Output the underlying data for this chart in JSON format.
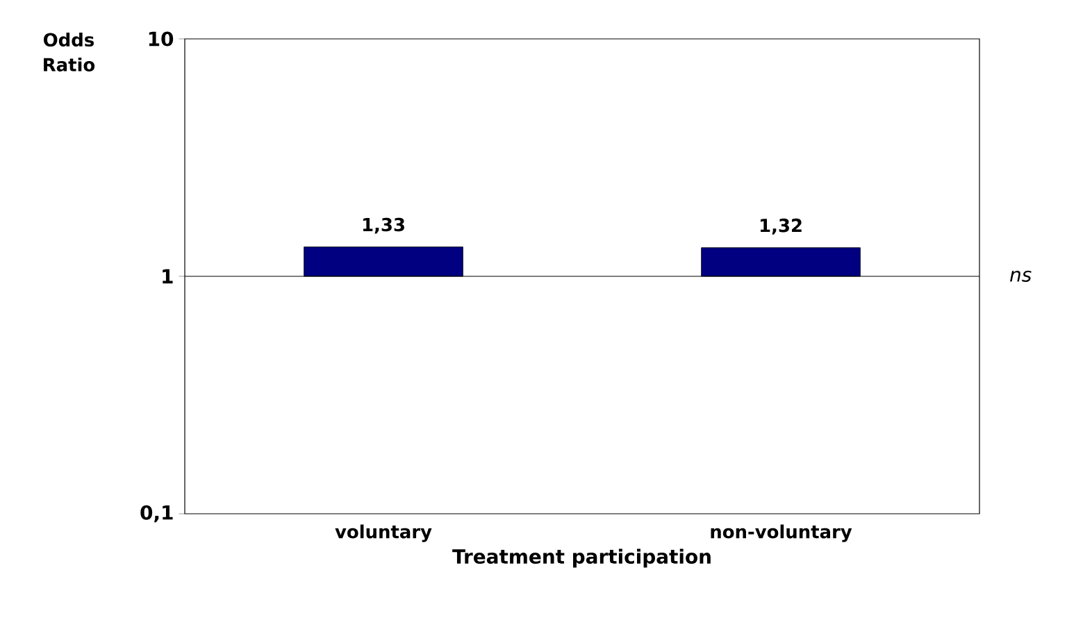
{
  "chart_data": {
    "type": "bar",
    "ylabel": "Odds Ratio",
    "xlabel": "Treatment participation",
    "categories": [
      "voluntary",
      "non-voluntary"
    ],
    "base": [
      1,
      1
    ],
    "values": [
      0.33,
      0.32
    ],
    "value_labels": [
      "1,33",
      "1,32"
    ],
    "color": "#000080",
    "log": true,
    "ylim": [
      0.1,
      10
    ],
    "yticks": [
      {
        "value": 0.1,
        "label": "0,1"
      },
      1,
      10
    ],
    "grid": false,
    "ref_lines": [
      {
        "axis": "y",
        "value": 1,
        "label": "ns"
      }
    ]
  }
}
